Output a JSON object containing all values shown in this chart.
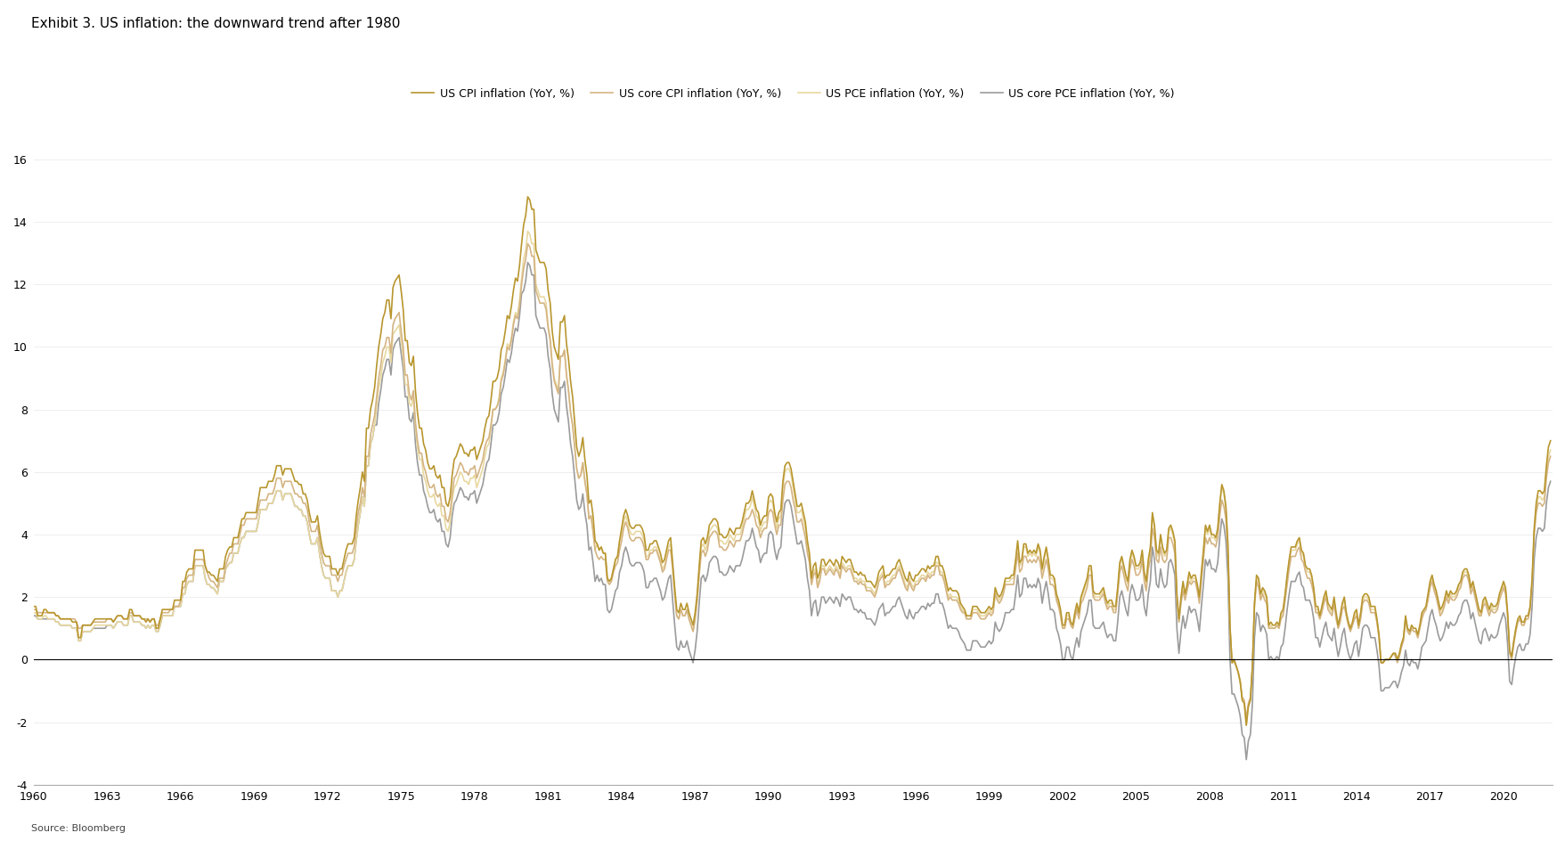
{
  "title": "Exhibit 3. US inflation: the downward trend after 1980",
  "source": "Source: Bloomberg",
  "legend_labels": [
    "US CPI inflation (YoY, %)",
    "US core CPI inflation (YoY, %)",
    "US PCE inflation (YoY, %)",
    "US core PCE inflation (YoY, %)"
  ],
  "line_colors": [
    "#B8962E",
    "#D4B483",
    "#E8D8A0",
    "#9B9B9B"
  ],
  "ylim": [
    -4,
    16
  ],
  "yticks": [
    -4,
    -2,
    0,
    2,
    4,
    6,
    8,
    10,
    12,
    14,
    16
  ],
  "xtick_years": [
    1960,
    1963,
    1966,
    1969,
    1972,
    1975,
    1978,
    1981,
    1984,
    1987,
    1990,
    1993,
    1996,
    1999,
    2002,
    2005,
    2008,
    2011,
    2014,
    2017,
    2020
  ],
  "background_color": "#FFFFFF",
  "title_fontsize": 11,
  "axis_fontsize": 9,
  "legend_fontsize": 9
}
